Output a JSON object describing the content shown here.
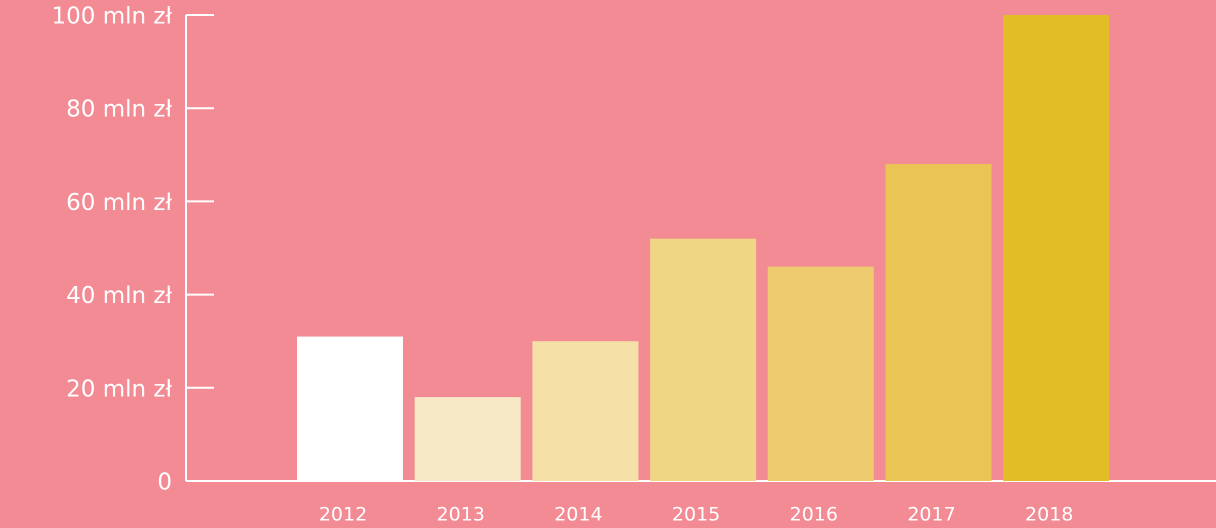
{
  "chart_data": {
    "type": "bar",
    "categories": [
      "2012",
      "2013",
      "2014",
      "2015",
      "2016",
      "2017",
      "2018"
    ],
    "values": [
      31,
      18,
      30,
      52,
      46,
      68,
      100
    ],
    "colors": [
      "#ffffff",
      "#f7e9c6",
      "#f5e0a8",
      "#eed685",
      "#eecb6e",
      "#eac553",
      "#e3bd24"
    ],
    "ylim": [
      0,
      100
    ],
    "yticks": [
      0,
      {
        "value": 20,
        "label": "20 mln zł"
      },
      {
        "value": 40,
        "label": "40 mln zł"
      },
      {
        "value": 60,
        "label": "60 mln zł"
      },
      {
        "value": 80,
        "label": "80 mln zł"
      },
      {
        "value": 100,
        "label": "100 mln zł"
      }
    ]
  }
}
